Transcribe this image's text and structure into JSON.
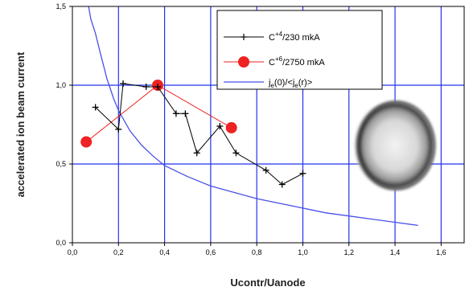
{
  "chart_data": {
    "type": "line",
    "xlabel": "Ucontr/Uanode",
    "ylabel": "accelerated ion beam current",
    "xlim": [
      0,
      1.7
    ],
    "ylim": [
      0,
      1.5
    ],
    "x_ticks": [
      "0,0",
      "0,2",
      "0,4",
      "0,6",
      "0,8",
      "1,0",
      "1,2",
      "1,4",
      "1,6"
    ],
    "y_ticks": [
      "0,0",
      "0,5",
      "1,0",
      "1,5"
    ],
    "grid": true,
    "legend_position": "top-right",
    "series": [
      {
        "name": "C+4/230 mkA",
        "legend": {
          "prefix": "C",
          "sup": "+4",
          "suffix": "/230 mkA"
        },
        "color": "#000000",
        "marker": "plus",
        "x": [
          0.1,
          0.2,
          0.22,
          0.32,
          0.37,
          0.45,
          0.49,
          0.54,
          0.64,
          0.71,
          0.84,
          0.91,
          1.0
        ],
        "y": [
          0.86,
          0.72,
          1.01,
          0.99,
          0.99,
          0.82,
          0.82,
          0.57,
          0.74,
          0.57,
          0.46,
          0.37,
          0.44
        ]
      },
      {
        "name": "C+6/2750 mkA",
        "legend": {
          "prefix": "C",
          "sup": "+6",
          "suffix": "/2750 mkA"
        },
        "color": "#ee2222",
        "marker": "circle",
        "x": [
          0.06,
          0.37,
          0.69
        ],
        "y": [
          0.64,
          1.0,
          0.73
        ]
      },
      {
        "name": "je(0)/<je(r)>",
        "legend": {
          "parts": [
            "j",
            "e",
            "(0)/<j",
            "e",
            "(r)>"
          ]
        },
        "color": "#4a50e8",
        "marker": "none",
        "x": [
          0.07,
          0.08,
          0.1,
          0.12,
          0.15,
          0.18,
          0.2,
          0.25,
          0.3,
          0.35,
          0.4,
          0.5,
          0.6,
          0.7,
          0.8,
          0.9,
          1.0,
          1.1,
          1.2,
          1.3,
          1.4,
          1.5
        ],
        "y": [
          1.5,
          1.42,
          1.33,
          1.21,
          1.04,
          0.91,
          0.84,
          0.71,
          0.62,
          0.55,
          0.49,
          0.42,
          0.36,
          0.32,
          0.28,
          0.25,
          0.22,
          0.19,
          0.17,
          0.15,
          0.13,
          0.11
        ]
      }
    ]
  }
}
